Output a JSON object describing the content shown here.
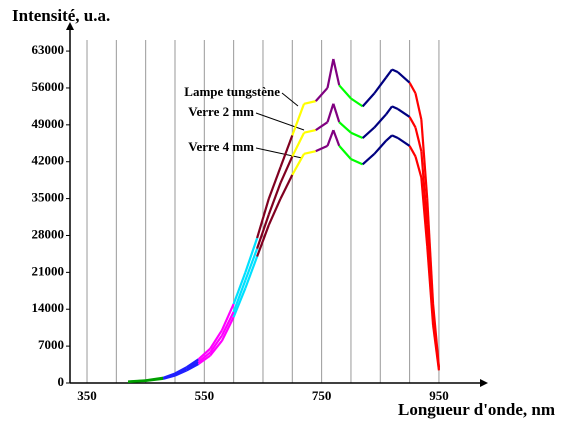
{
  "chart_data": {
    "type": "line",
    "y_label": "Intensité, u.a.",
    "x_label": "Longueur d'onde, nm",
    "xlim": [
      321,
      1020
    ],
    "ylim": [
      0,
      67000
    ],
    "xticks": [
      350,
      550,
      750,
      950
    ],
    "xgrid": [
      350,
      400,
      450,
      500,
      550,
      600,
      650,
      700,
      750,
      800,
      850,
      900,
      950
    ],
    "yticks": [
      0,
      7000,
      14000,
      21000,
      28000,
      35000,
      42000,
      49000,
      56000,
      63000
    ],
    "x": [
      420,
      450,
      480,
      500,
      520,
      540,
      560,
      580,
      600,
      620,
      640,
      660,
      680,
      700,
      720,
      740,
      760,
      770,
      780,
      800,
      820,
      840,
      860,
      870,
      880,
      900,
      910,
      920,
      930,
      940,
      950
    ],
    "segment_colors": [
      "#00a000",
      "#00a000",
      "#2020ff",
      "#2020ff",
      "#2020ff",
      "#ff00ff",
      "#ff00ff",
      "#ff00ff",
      "#00e0ff",
      "#00e0ff",
      "#800020",
      "#800020",
      "#800020",
      "#ffff00",
      "#ffff00",
      "#800080",
      "#800080",
      "#800080",
      "#00ff00",
      "#00ff00",
      "#000080",
      "#000080",
      "#000080",
      "#000080",
      "#000080",
      "#ff0000",
      "#ff0000",
      "#ff0000",
      "#ff0000",
      "#ff0000"
    ],
    "series": [
      {
        "name": "Lampe tungstène",
        "values": [
          300,
          500,
          1000,
          1800,
          3000,
          4500,
          6500,
          10000,
          15000,
          21000,
          27500,
          35000,
          41000,
          47000,
          53000,
          53500,
          56000,
          61500,
          56500,
          54000,
          52500,
          55000,
          58000,
          59500,
          59000,
          57000,
          55000,
          50000,
          35000,
          15000,
          3000
        ]
      },
      {
        "name": "Verre 2 mm",
        "values": [
          250,
          450,
          900,
          1600,
          2700,
          4000,
          5800,
          9000,
          13500,
          19500,
          25500,
          32000,
          38000,
          43000,
          47500,
          48000,
          49500,
          53000,
          49500,
          47500,
          46500,
          48500,
          51000,
          52500,
          52000,
          50500,
          48500,
          44000,
          30000,
          13000,
          2700
        ]
      },
      {
        "name": "Verre 4 mm",
        "values": [
          200,
          400,
          800,
          1400,
          2400,
          3600,
          5200,
          8000,
          12500,
          18000,
          24000,
          30000,
          35000,
          39500,
          43500,
          44000,
          45000,
          48000,
          45000,
          42500,
          41500,
          43500,
          46000,
          47000,
          46500,
          45000,
          43000,
          39000,
          26000,
          11000,
          2400
        ]
      }
    ]
  }
}
